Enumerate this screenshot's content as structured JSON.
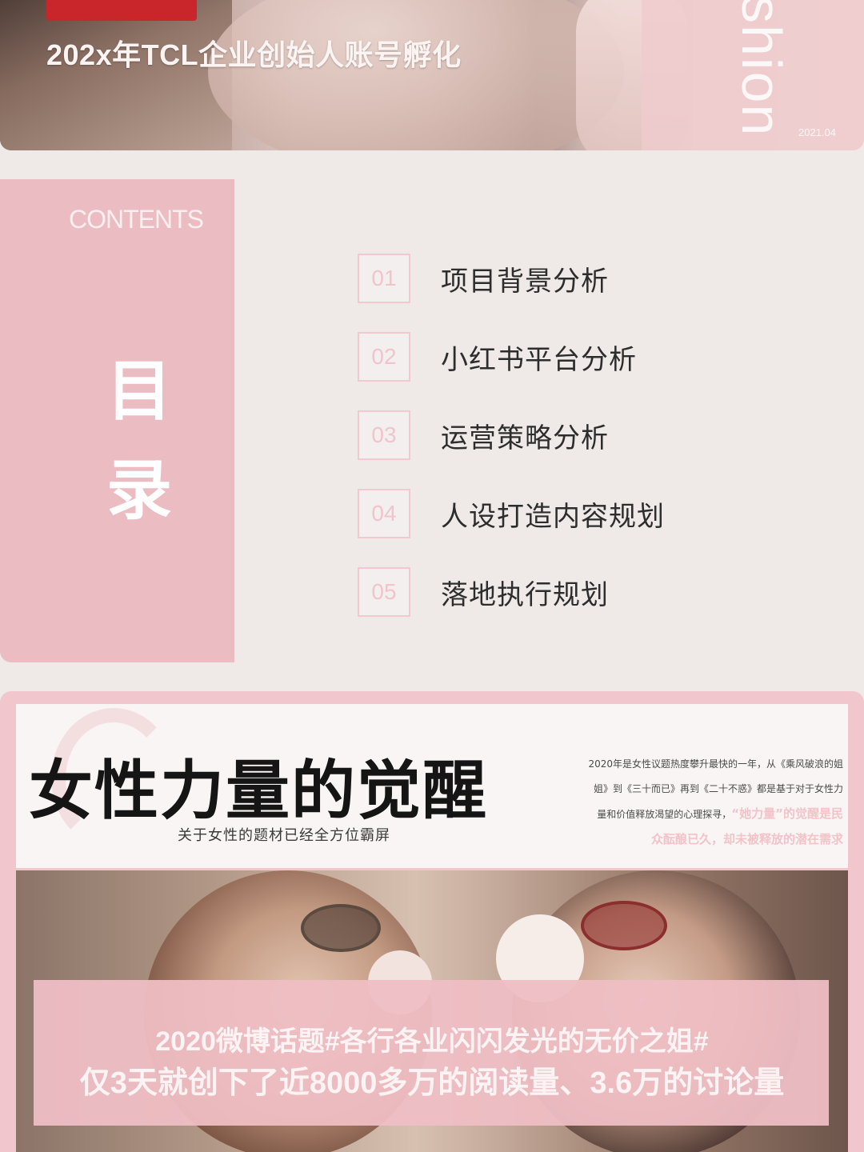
{
  "banner": {
    "subtitle": "202x年TCL企业创始人账号孵化",
    "vertical_word": "shion",
    "date": "2021.04"
  },
  "contents": {
    "label": "CONTENTS",
    "title": "目录",
    "items": [
      {
        "num": "01",
        "label": "项目背景分析"
      },
      {
        "num": "02",
        "label": "小红书平台分析"
      },
      {
        "num": "03",
        "label": "运营策略分析"
      },
      {
        "num": "04",
        "label": "人设打造内容规划"
      },
      {
        "num": "05",
        "label": "落地执行规划"
      }
    ]
  },
  "section": {
    "headline": "女性力量的觉醒",
    "subheadline": "关于女性的题材已经全方位霸屏",
    "description_line1": "2020年是女性议题热度攀升最快的一年，从《乘风破浪的姐",
    "description_line2": "姐》到《三十而已》再到《二十不惑》都是基于对于女性力",
    "description_line3": "量和价值释放渴望的心理探寻，",
    "description_highlight1": "“她力量”的觉醒是民",
    "description_highlight2": "众酝酿已久，却未被释放的潜在需求",
    "quote_line1": "2020微博话题#各行各业闪闪发光的无价之姐#",
    "quote_line2": "仅3天就创下了近8000多万的阅读量、3.6万的讨论量"
  }
}
